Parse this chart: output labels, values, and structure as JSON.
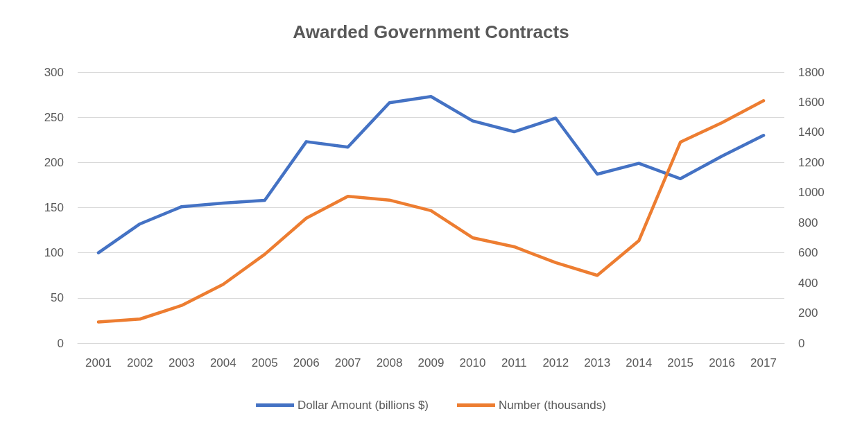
{
  "chart_data": {
    "type": "line",
    "title": "Awarded Government Contracts",
    "categories": [
      "2001",
      "2002",
      "2003",
      "2004",
      "2005",
      "2006",
      "2007",
      "2008",
      "2009",
      "2010",
      "2011",
      "2012",
      "2013",
      "2014",
      "2015",
      "2016",
      "2017"
    ],
    "series": [
      {
        "name": "Dollar Amount (billions $)",
        "color": "#4472c4",
        "values": [
          100,
          132,
          151,
          155,
          158,
          223,
          217,
          266,
          273,
          246,
          234,
          249,
          187,
          199,
          182,
          207,
          230
        ]
      },
      {
        "name": "Number (thousands)",
        "color": "#ed7d31",
        "axis": "y2",
        "values": [
          140,
          160,
          250,
          390,
          590,
          830,
          975,
          950,
          880,
          700,
          640,
          535,
          450,
          680,
          1335,
          1464,
          1610
        ]
      }
    ],
    "ylim": [
      0,
      300
    ],
    "yticks": [
      0,
      50,
      100,
      150,
      200,
      250,
      300
    ],
    "y2lim": [
      0,
      1800
    ],
    "y2ticks": [
      0,
      200,
      400,
      600,
      800,
      1000,
      1200,
      1400,
      1600,
      1800
    ],
    "grid": "y",
    "legend": "bottom",
    "marker": "none",
    "line_style": "solid"
  }
}
